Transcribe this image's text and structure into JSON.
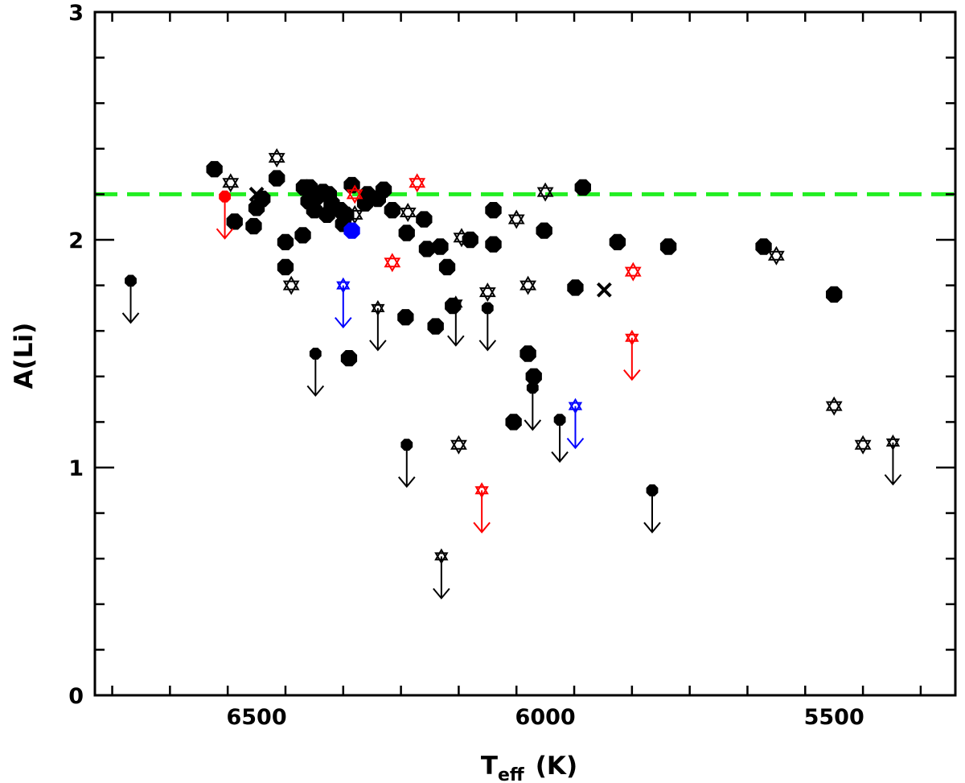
{
  "chart_data": {
    "type": "scatter",
    "title": "",
    "xlabel": {
      "main": "T",
      "subscript": "eff",
      "unit": "(K)"
    },
    "ylabel": "A(Li)",
    "xlim": [
      6780,
      5290
    ],
    "ylim": [
      0,
      3
    ],
    "x_ticks": [
      {
        "value": 6500,
        "label": "6500"
      },
      {
        "value": 6000,
        "label": "6000"
      },
      {
        "value": 5500,
        "label": "5500"
      }
    ],
    "y_ticks": [
      {
        "value": 0,
        "label": "0"
      },
      {
        "value": 1,
        "label": "1"
      },
      {
        "value": 2,
        "label": "2"
      },
      {
        "value": 3,
        "label": "3"
      }
    ],
    "reference_line": {
      "y": 2.2,
      "color": "#22ee22",
      "style": "dashed"
    },
    "colors": {
      "black": "#000000",
      "red": "#ff0000",
      "blue": "#0000ff",
      "green": "#22ee22"
    },
    "series": [
      {
        "name": "filled circles (black)",
        "marker": "circle-filled",
        "color": "#000000",
        "points": [
          {
            "x": 6573,
            "y": 2.31
          },
          {
            "x": 6538,
            "y": 2.08
          },
          {
            "x": 6500,
            "y": 2.14
          },
          {
            "x": 6490,
            "y": 2.18
          },
          {
            "x": 6505,
            "y": 2.06
          },
          {
            "x": 6465,
            "y": 2.27
          },
          {
            "x": 6450,
            "y": 1.99
          },
          {
            "x": 6450,
            "y": 1.88
          },
          {
            "x": 6420,
            "y": 2.02
          },
          {
            "x": 6418,
            "y": 2.23
          },
          {
            "x": 6410,
            "y": 2.17
          },
          {
            "x": 6408,
            "y": 2.23
          },
          {
            "x": 6400,
            "y": 2.13
          },
          {
            "x": 6395,
            "y": 2.19
          },
          {
            "x": 6385,
            "y": 2.21
          },
          {
            "x": 6378,
            "y": 2.11
          },
          {
            "x": 6375,
            "y": 2.2
          },
          {
            "x": 6370,
            "y": 2.16
          },
          {
            "x": 6355,
            "y": 2.13
          },
          {
            "x": 6350,
            "y": 2.07
          },
          {
            "x": 6345,
            "y": 2.11
          },
          {
            "x": 6335,
            "y": 2.24
          },
          {
            "x": 6312,
            "y": 2.16
          },
          {
            "x": 6308,
            "y": 2.2
          },
          {
            "x": 6340,
            "y": 1.48
          },
          {
            "x": 6290,
            "y": 2.18
          },
          {
            "x": 6280,
            "y": 2.22
          },
          {
            "x": 6265,
            "y": 2.13
          },
          {
            "x": 6242,
            "y": 1.66
          },
          {
            "x": 6240,
            "y": 2.03
          },
          {
            "x": 6210,
            "y": 2.09
          },
          {
            "x": 6205,
            "y": 1.96
          },
          {
            "x": 6190,
            "y": 1.62
          },
          {
            "x": 6182,
            "y": 1.97
          },
          {
            "x": 6170,
            "y": 1.88
          },
          {
            "x": 6160,
            "y": 1.71
          },
          {
            "x": 6130,
            "y": 2.0
          },
          {
            "x": 6090,
            "y": 2.13
          },
          {
            "x": 6090,
            "y": 1.98
          },
          {
            "x": 6055,
            "y": 1.2
          },
          {
            "x": 6030,
            "y": 1.5
          },
          {
            "x": 6020,
            "y": 1.4
          },
          {
            "x": 6002,
            "y": 2.04
          },
          {
            "x": 5948,
            "y": 1.79
          },
          {
            "x": 5935,
            "y": 2.23
          },
          {
            "x": 5875,
            "y": 1.99
          },
          {
            "x": 5787,
            "y": 1.97
          },
          {
            "x": 5622,
            "y": 1.97
          },
          {
            "x": 5500,
            "y": 1.76
          }
        ]
      },
      {
        "name": "filled circles upper limits (black)",
        "marker": "circle-filled-limit",
        "color": "#000000",
        "points": [
          {
            "x": 6718,
            "y": 1.82
          },
          {
            "x": 6398,
            "y": 1.5
          },
          {
            "x": 6240,
            "y": 1.1
          },
          {
            "x": 6100,
            "y": 1.7
          },
          {
            "x": 6022,
            "y": 1.35
          },
          {
            "x": 5975,
            "y": 1.21
          },
          {
            "x": 5815,
            "y": 0.9
          }
        ]
      },
      {
        "name": "open stars (black)",
        "marker": "star-open",
        "color": "#000000",
        "points": [
          {
            "x": 6545,
            "y": 2.25
          },
          {
            "x": 6465,
            "y": 2.36
          },
          {
            "x": 6440,
            "y": 1.8
          },
          {
            "x": 6330,
            "y": 2.11
          },
          {
            "x": 6238,
            "y": 2.12
          },
          {
            "x": 6150,
            "y": 1.1
          },
          {
            "x": 6145,
            "y": 2.01
          },
          {
            "x": 6100,
            "y": 1.77
          },
          {
            "x": 6050,
            "y": 2.09
          },
          {
            "x": 6030,
            "y": 1.8
          },
          {
            "x": 6000,
            "y": 2.21
          },
          {
            "x": 5600,
            "y": 1.93
          },
          {
            "x": 5450,
            "y": 1.1
          },
          {
            "x": 5500,
            "y": 1.27
          }
        ]
      },
      {
        "name": "open stars upper limits (black)",
        "marker": "star-open-limit",
        "color": "#000000",
        "points": [
          {
            "x": 6290,
            "y": 1.7
          },
          {
            "x": 6180,
            "y": 0.61
          },
          {
            "x": 6155,
            "y": 1.72
          },
          {
            "x": 5398,
            "y": 1.11
          }
        ]
      },
      {
        "name": "crosses (black)",
        "marker": "cross",
        "color": "#000000",
        "points": [
          {
            "x": 6500,
            "y": 2.2
          },
          {
            "x": 5898,
            "y": 1.78
          }
        ]
      },
      {
        "name": "filled circle (blue)",
        "marker": "circle-filled",
        "color": "#0000ff",
        "points": [
          {
            "x": 6335,
            "y": 2.04
          }
        ]
      },
      {
        "name": "filled circle upper limit (red)",
        "marker": "circle-filled-limit",
        "color": "#ff0000",
        "points": [
          {
            "x": 6555,
            "y": 2.19
          }
        ]
      },
      {
        "name": "open stars (red)",
        "marker": "star-open",
        "color": "#ff0000",
        "points": [
          {
            "x": 6330,
            "y": 2.2
          },
          {
            "x": 6265,
            "y": 1.9
          },
          {
            "x": 6222,
            "y": 2.25
          },
          {
            "x": 5848,
            "y": 1.86
          }
        ]
      },
      {
        "name": "open stars upper limits (red)",
        "marker": "star-open-limit",
        "color": "#ff0000",
        "points": [
          {
            "x": 6110,
            "y": 0.9
          },
          {
            "x": 5850,
            "y": 1.57
          }
        ]
      },
      {
        "name": "open stars upper limits (blue)",
        "marker": "star-open-limit",
        "color": "#0000ff",
        "points": [
          {
            "x": 6350,
            "y": 1.8
          },
          {
            "x": 5948,
            "y": 1.27
          }
        ]
      }
    ]
  }
}
